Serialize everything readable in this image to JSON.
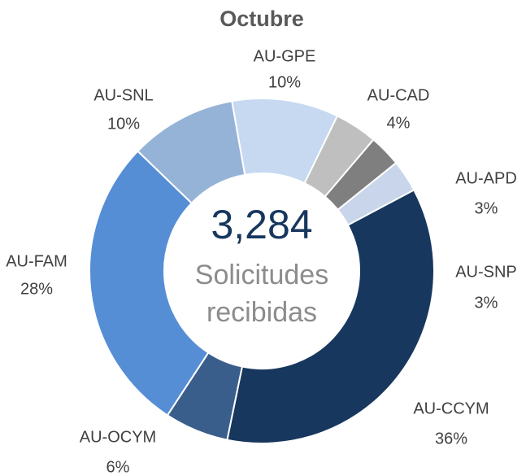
{
  "chart_data": {
    "type": "donut",
    "title": "Octubre",
    "categories": [
      "AU-GPE",
      "AU-CAD",
      "AU-APD",
      "AU-SNP",
      "AU-CCYM",
      "AU-OCYM",
      "AU-FAM",
      "AU-SNL"
    ],
    "values": [
      10,
      4,
      3,
      3,
      36,
      6,
      28,
      10
    ],
    "value_labels": [
      "10%",
      "4%",
      "3%",
      "3%",
      "36%",
      "6%",
      "28%",
      "10%"
    ],
    "colors": [
      "#c6d9f1",
      "#bfbfbf",
      "#7f7f7f",
      "#c9d5ea",
      "#17375e",
      "#3a5e8c",
      "#558ed5",
      "#95b3d7"
    ],
    "annotations": {
      "total": "3,284",
      "caption": [
        "Solicitudes",
        "recibidas"
      ]
    }
  }
}
